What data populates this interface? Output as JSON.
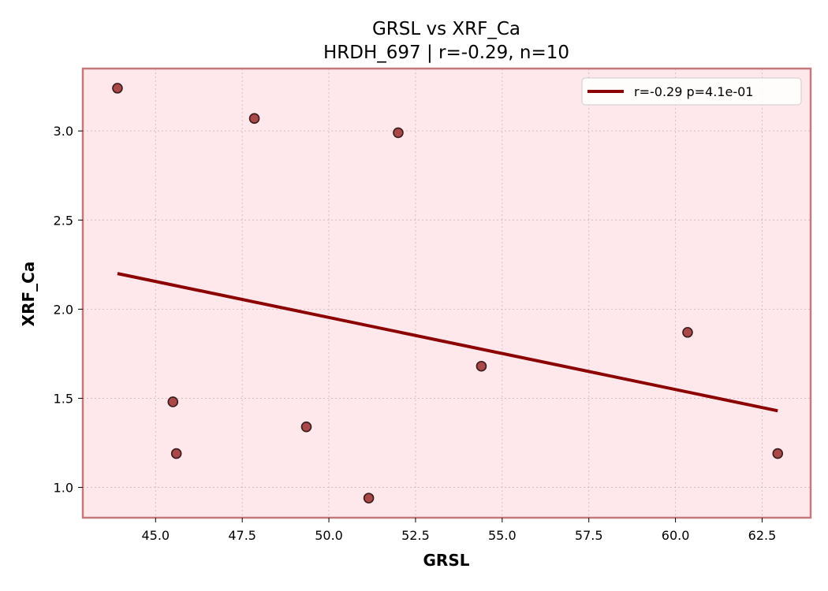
{
  "chart_data": {
    "type": "scatter",
    "title": "GRSL vs XRF_Ca",
    "subtitle": "HRDH_697 | r=-0.29, n=10",
    "xlabel": "GRSL",
    "ylabel": "XRF_Ca",
    "xlim": [
      42.9,
      63.9
    ],
    "ylim": [
      0.83,
      3.35
    ],
    "xticks": [
      45.0,
      47.5,
      50.0,
      52.5,
      55.0,
      57.5,
      60.0,
      62.5
    ],
    "yticks": [
      1.0,
      1.5,
      2.0,
      2.5,
      3.0
    ],
    "xtick_labels": [
      "45.0",
      "47.5",
      "50.0",
      "52.5",
      "55.0",
      "57.5",
      "60.0",
      "62.5"
    ],
    "ytick_labels": [
      "1.0",
      "1.5",
      "2.0",
      "2.5",
      "3.0"
    ],
    "grid": true,
    "points": [
      {
        "x": 43.9,
        "y": 3.24
      },
      {
        "x": 47.85,
        "y": 3.07
      },
      {
        "x": 52.0,
        "y": 2.99
      },
      {
        "x": 45.5,
        "y": 1.48
      },
      {
        "x": 45.6,
        "y": 1.19
      },
      {
        "x": 49.35,
        "y": 1.34
      },
      {
        "x": 51.15,
        "y": 0.94
      },
      {
        "x": 54.4,
        "y": 1.68
      },
      {
        "x": 60.35,
        "y": 1.87
      },
      {
        "x": 62.95,
        "y": 1.19
      }
    ],
    "fit_line": {
      "x": [
        43.9,
        62.95
      ],
      "y": [
        2.2,
        1.43
      ]
    },
    "legend": {
      "position": "top-right",
      "label": "r=-0.29  p=4.1e-01"
    },
    "colors": {
      "plot_background": "#ffe8ec",
      "frame": "#c47a7a",
      "point_fill": "#a84848",
      "point_edge": "#3a1a1a",
      "fit_line": "#8b0000"
    }
  }
}
